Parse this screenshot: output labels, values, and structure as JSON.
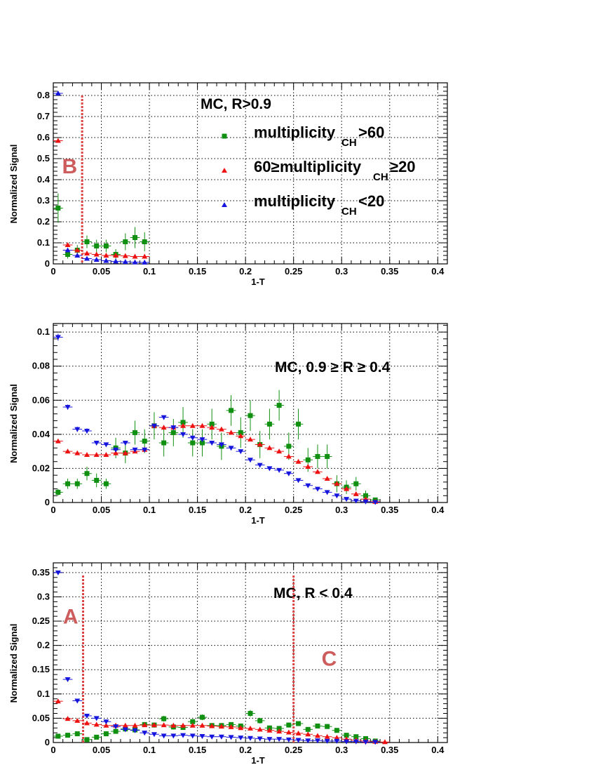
{
  "colors": {
    "green": "#109010",
    "red": "#ee1111",
    "blue": "#1515dd",
    "marker_line": "#dd4444",
    "region_label": "#cd5c5c"
  },
  "legend": {
    "entries": [
      {
        "series_index": 0,
        "main": "multiplicity",
        "sub": "CH",
        "tail": ">60",
        "pre": ""
      },
      {
        "series_index": 1,
        "main": " multiplicity",
        "sub": "CH",
        "tail": "≥20",
        "pre": "60≥"
      },
      {
        "series_index": 2,
        "main": "multiplicity",
        "sub": "CH",
        "tail": "<20",
        "pre": ""
      }
    ]
  },
  "chart_data": [
    {
      "type": "scatter",
      "title": "MC, R>0.9",
      "xlabel": "1-T",
      "ylabel": "Normalized Signal",
      "xlim": [
        0,
        0.41
      ],
      "ylim": [
        0,
        0.86
      ],
      "xticks": [
        0,
        0.05,
        0.1,
        0.15,
        0.2,
        0.25,
        0.3,
        0.35,
        0.4
      ],
      "xtick_labels": [
        "0",
        "0.05",
        "0.1",
        "0.15",
        "0.2",
        "0.25",
        "0.3",
        "0.35",
        "0.4"
      ],
      "yticks": [
        0,
        0.1,
        0.2,
        0.3,
        0.4,
        0.5,
        0.6,
        0.7,
        0.8
      ],
      "ytick_labels": [
        "0",
        "0.1",
        "0.2",
        "0.3",
        "0.4",
        "0.5",
        "0.6",
        "0.7",
        "0.8"
      ],
      "grid": true,
      "legend_placement": "top-center",
      "vlines": [
        0.03
      ],
      "region_labels": [
        {
          "text": "B",
          "x": 0.017,
          "y": 0.43
        }
      ],
      "series": [
        {
          "color": "green",
          "marker": "square",
          "x": [
            0.005,
            0.015,
            0.025,
            0.035,
            0.045,
            0.055,
            0.065,
            0.075,
            0.085,
            0.095
          ],
          "y": [
            0.265,
            0.045,
            0.065,
            0.105,
            0.085,
            0.085,
            0.045,
            0.105,
            0.125,
            0.105
          ],
          "err": [
            0.07,
            0.02,
            0.025,
            0.03,
            0.03,
            0.03,
            0.025,
            0.04,
            0.05,
            0.045
          ]
        },
        {
          "color": "red",
          "marker": "triangle-up",
          "x": [
            0.005,
            0.015,
            0.025,
            0.035,
            0.045,
            0.055,
            0.065,
            0.075,
            0.085,
            0.095
          ],
          "y": [
            0.585,
            0.09,
            0.065,
            0.05,
            0.045,
            0.04,
            0.04,
            0.038,
            0.035,
            0.035
          ],
          "err": [
            0.005,
            0.003,
            0.003,
            0.003,
            0.003,
            0.003,
            0.003,
            0.003,
            0.003,
            0.003
          ]
        },
        {
          "color": "blue",
          "marker": "triangle-up",
          "x": [
            0.005,
            0.015,
            0.025,
            0.035,
            0.045,
            0.055,
            0.065,
            0.075,
            0.085,
            0.095
          ],
          "y": [
            0.81,
            0.065,
            0.04,
            0.025,
            0.02,
            0.015,
            0.012,
            0.01,
            0.008,
            0.007
          ],
          "err": [
            0.004,
            0.003,
            0.003,
            0.002,
            0.002,
            0.002,
            0.002,
            0.002,
            0.002,
            0.002
          ]
        }
      ]
    },
    {
      "type": "scatter",
      "title": "MC, 0.9 ≥ R ≥ 0.4",
      "xlabel": "1-T",
      "ylabel": "Normalized Signal",
      "xlim": [
        0,
        0.41
      ],
      "ylim": [
        0,
        0.105
      ],
      "xticks": [
        0,
        0.05,
        0.1,
        0.15,
        0.2,
        0.25,
        0.3,
        0.35,
        0.4
      ],
      "xtick_labels": [
        "0",
        "0.05",
        "0.1",
        "0.15",
        "0.2",
        "0.25",
        "0.3",
        "0.35",
        "0.4"
      ],
      "yticks": [
        0,
        0.02,
        0.04,
        0.06,
        0.08,
        0.1
      ],
      "ytick_labels": [
        "0",
        "0.02",
        "0.04",
        "0.06",
        "0.08",
        "0.1"
      ],
      "grid": true,
      "vlines": [],
      "region_labels": [],
      "series": [
        {
          "color": "green",
          "marker": "square",
          "x": [
            0.005,
            0.015,
            0.025,
            0.035,
            0.045,
            0.055,
            0.065,
            0.075,
            0.085,
            0.095,
            0.105,
            0.115,
            0.125,
            0.135,
            0.145,
            0.155,
            0.165,
            0.175,
            0.185,
            0.195,
            0.205,
            0.215,
            0.225,
            0.235,
            0.245,
            0.255,
            0.265,
            0.275,
            0.285,
            0.295,
            0.305,
            0.315,
            0.325,
            0.335
          ],
          "y": [
            0.006,
            0.011,
            0.011,
            0.017,
            0.013,
            0.011,
            0.032,
            0.029,
            0.041,
            0.036,
            0.045,
            0.035,
            0.041,
            0.047,
            0.035,
            0.035,
            0.046,
            0.033,
            0.054,
            0.041,
            0.051,
            0.034,
            0.046,
            0.057,
            0.033,
            0.046,
            0.025,
            0.027,
            0.027,
            0.011,
            0.009,
            0.011,
            0.004,
            0.0015
          ],
          "err": [
            0.002,
            0.003,
            0.003,
            0.004,
            0.004,
            0.003,
            0.006,
            0.006,
            0.007,
            0.007,
            0.008,
            0.008,
            0.008,
            0.009,
            0.008,
            0.008,
            0.009,
            0.008,
            0.009,
            0.009,
            0.009,
            0.008,
            0.009,
            0.009,
            0.008,
            0.009,
            0.007,
            0.007,
            0.007,
            0.005,
            0.004,
            0.004,
            0.003,
            0.001
          ]
        },
        {
          "color": "red",
          "marker": "triangle-up",
          "x": [
            0.005,
            0.015,
            0.025,
            0.035,
            0.045,
            0.055,
            0.065,
            0.075,
            0.085,
            0.095,
            0.105,
            0.115,
            0.125,
            0.135,
            0.145,
            0.155,
            0.165,
            0.175,
            0.185,
            0.195,
            0.205,
            0.215,
            0.225,
            0.235,
            0.245,
            0.255,
            0.265,
            0.275,
            0.285,
            0.295,
            0.305,
            0.315,
            0.325,
            0.335
          ],
          "y": [
            0.036,
            0.03,
            0.029,
            0.028,
            0.028,
            0.028,
            0.029,
            0.029,
            0.03,
            0.031,
            0.045,
            0.044,
            0.044,
            0.045,
            0.045,
            0.045,
            0.044,
            0.043,
            0.041,
            0.039,
            0.037,
            0.034,
            0.032,
            0.03,
            0.027,
            0.024,
            0.021,
            0.018,
            0.014,
            0.011,
            0.008,
            0.005,
            0.002,
            0.0005
          ],
          "err": [
            0.001,
            0.001,
            0.001,
            0.001,
            0.001,
            0.001,
            0.001,
            0.001,
            0.001,
            0.001,
            0.001,
            0.001,
            0.001,
            0.001,
            0.001,
            0.001,
            0.001,
            0.001,
            0.001,
            0.001,
            0.001,
            0.001,
            0.001,
            0.001,
            0.001,
            0.001,
            0.001,
            0.001,
            0.001,
            0.001,
            0.001,
            0.001,
            0.001,
            0.001
          ]
        },
        {
          "color": "blue",
          "marker": "triangle-down",
          "x": [
            0.005,
            0.015,
            0.025,
            0.035,
            0.045,
            0.055,
            0.065,
            0.075,
            0.085,
            0.095,
            0.105,
            0.115,
            0.125,
            0.135,
            0.145,
            0.155,
            0.165,
            0.175,
            0.185,
            0.195,
            0.205,
            0.215,
            0.225,
            0.235,
            0.245,
            0.255,
            0.265,
            0.275,
            0.285,
            0.295,
            0.305,
            0.315,
            0.325,
            0.335
          ],
          "y": [
            0.097,
            0.056,
            0.043,
            0.042,
            0.035,
            0.034,
            0.031,
            0.035,
            0.031,
            0.031,
            0.045,
            0.05,
            0.044,
            0.04,
            0.038,
            0.037,
            0.035,
            0.034,
            0.032,
            0.03,
            0.025,
            0.022,
            0.02,
            0.019,
            0.017,
            0.013,
            0.01,
            0.008,
            0.006,
            0.004,
            0.002,
            0.001,
            0.0005,
            0.0002
          ],
          "err": [
            0.002,
            0.0015,
            0.0015,
            0.0015,
            0.001,
            0.001,
            0.001,
            0.001,
            0.001,
            0.001,
            0.001,
            0.001,
            0.001,
            0.001,
            0.001,
            0.001,
            0.001,
            0.001,
            0.001,
            0.001,
            0.001,
            0.001,
            0.001,
            0.001,
            0.001,
            0.001,
            0.001,
            0.001,
            0.001,
            0.001,
            0.001,
            0.001,
            0.001,
            0.001
          ]
        }
      ]
    },
    {
      "type": "scatter",
      "title": "MC,  R < 0.4",
      "xlabel": "1-T",
      "ylabel": "Normalized Signal",
      "xlim": [
        0,
        0.41
      ],
      "ylim": [
        0,
        0.37
      ],
      "xticks": [
        0,
        0.05,
        0.1,
        0.15,
        0.2,
        0.25,
        0.3,
        0.35,
        0.4
      ],
      "xtick_labels": [
        "0",
        "0.05",
        "0.1",
        "0.15",
        "0.2",
        "0.25",
        "0.3",
        "0.35",
        "0.4"
      ],
      "yticks": [
        0,
        0.05,
        0.1,
        0.15,
        0.2,
        0.25,
        0.3,
        0.35
      ],
      "ytick_labels": [
        "0",
        "0.05",
        "0.1",
        "0.15",
        "0.2",
        "0.25",
        "0.3",
        "0.35"
      ],
      "grid": true,
      "vlines": [
        0.031,
        0.25
      ],
      "region_labels": [
        {
          "text": "A",
          "x": 0.018,
          "y": 0.245
        },
        {
          "text": "C",
          "x": 0.287,
          "y": 0.158
        }
      ],
      "series": [
        {
          "color": "green",
          "marker": "square",
          "x": [
            0.005,
            0.015,
            0.025,
            0.035,
            0.045,
            0.055,
            0.065,
            0.075,
            0.085,
            0.095,
            0.105,
            0.115,
            0.125,
            0.135,
            0.145,
            0.155,
            0.165,
            0.175,
            0.185,
            0.195,
            0.205,
            0.215,
            0.225,
            0.235,
            0.245,
            0.255,
            0.265,
            0.275,
            0.285,
            0.295,
            0.305,
            0.315,
            0.325,
            0.335
          ],
          "y": [
            0.013,
            0.015,
            0.018,
            0.006,
            0.011,
            0.018,
            0.023,
            0.028,
            0.026,
            0.037,
            0.036,
            0.049,
            0.032,
            0.031,
            0.043,
            0.052,
            0.035,
            0.035,
            0.037,
            0.034,
            0.06,
            0.045,
            0.03,
            0.029,
            0.036,
            0.039,
            0.027,
            0.034,
            0.033,
            0.025,
            0.015,
            0.012,
            0.008,
            0.003
          ],
          "err": [
            0.003,
            0.003,
            0.004,
            0.002,
            0.003,
            0.003,
            0.004,
            0.004,
            0.004,
            0.005,
            0.005,
            0.006,
            0.005,
            0.005,
            0.005,
            0.006,
            0.005,
            0.005,
            0.005,
            0.005,
            0.007,
            0.006,
            0.005,
            0.005,
            0.005,
            0.005,
            0.004,
            0.005,
            0.005,
            0.004,
            0.003,
            0.003,
            0.002,
            0.001
          ]
        },
        {
          "color": "red",
          "marker": "triangle-up",
          "x": [
            0.005,
            0.015,
            0.025,
            0.035,
            0.045,
            0.055,
            0.065,
            0.075,
            0.085,
            0.095,
            0.105,
            0.115,
            0.125,
            0.135,
            0.145,
            0.155,
            0.165,
            0.175,
            0.185,
            0.195,
            0.205,
            0.215,
            0.225,
            0.235,
            0.245,
            0.255,
            0.265,
            0.275,
            0.285,
            0.295,
            0.305,
            0.315,
            0.325,
            0.335,
            0.345
          ],
          "y": [
            0.085,
            0.049,
            0.045,
            0.04,
            0.037,
            0.035,
            0.035,
            0.035,
            0.035,
            0.036,
            0.036,
            0.036,
            0.035,
            0.035,
            0.035,
            0.035,
            0.034,
            0.033,
            0.032,
            0.03,
            0.029,
            0.027,
            0.025,
            0.023,
            0.021,
            0.019,
            0.017,
            0.014,
            0.012,
            0.01,
            0.007,
            0.005,
            0.003,
            0.002,
            0.001
          ],
          "err": [
            0.002,
            0.001,
            0.001,
            0.001,
            0.001,
            0.001,
            0.001,
            0.001,
            0.001,
            0.001,
            0.001,
            0.001,
            0.001,
            0.001,
            0.001,
            0.001,
            0.001,
            0.001,
            0.001,
            0.001,
            0.001,
            0.001,
            0.001,
            0.001,
            0.001,
            0.001,
            0.001,
            0.001,
            0.001,
            0.001,
            0.001,
            0.001,
            0.001,
            0.001,
            0.001
          ]
        },
        {
          "color": "blue",
          "marker": "triangle-down",
          "x": [
            0.005,
            0.015,
            0.025,
            0.035,
            0.045,
            0.055,
            0.065,
            0.075,
            0.085,
            0.095,
            0.105,
            0.115,
            0.125,
            0.135,
            0.145,
            0.155,
            0.165,
            0.175,
            0.185,
            0.195,
            0.205,
            0.215,
            0.225,
            0.235,
            0.245,
            0.255,
            0.265,
            0.275,
            0.285,
            0.295,
            0.305,
            0.315,
            0.325,
            0.335
          ],
          "y": [
            0.35,
            0.13,
            0.086,
            0.055,
            0.05,
            0.043,
            0.033,
            0.027,
            0.025,
            0.02,
            0.017,
            0.014,
            0.014,
            0.015,
            0.014,
            0.013,
            0.012,
            0.012,
            0.011,
            0.01,
            0.009,
            0.008,
            0.007,
            0.007,
            0.006,
            0.005,
            0.004,
            0.004,
            0.003,
            0.003,
            0.002,
            0.002,
            0.001,
            0.001
          ],
          "err": [
            0.003,
            0.002,
            0.002,
            0.002,
            0.002,
            0.001,
            0.001,
            0.001,
            0.001,
            0.001,
            0.001,
            0.001,
            0.001,
            0.001,
            0.001,
            0.001,
            0.001,
            0.001,
            0.001,
            0.001,
            0.001,
            0.001,
            0.001,
            0.001,
            0.001,
            0.001,
            0.001,
            0.001,
            0.001,
            0.001,
            0.001,
            0.001,
            0.001,
            0.001
          ]
        }
      ]
    }
  ]
}
